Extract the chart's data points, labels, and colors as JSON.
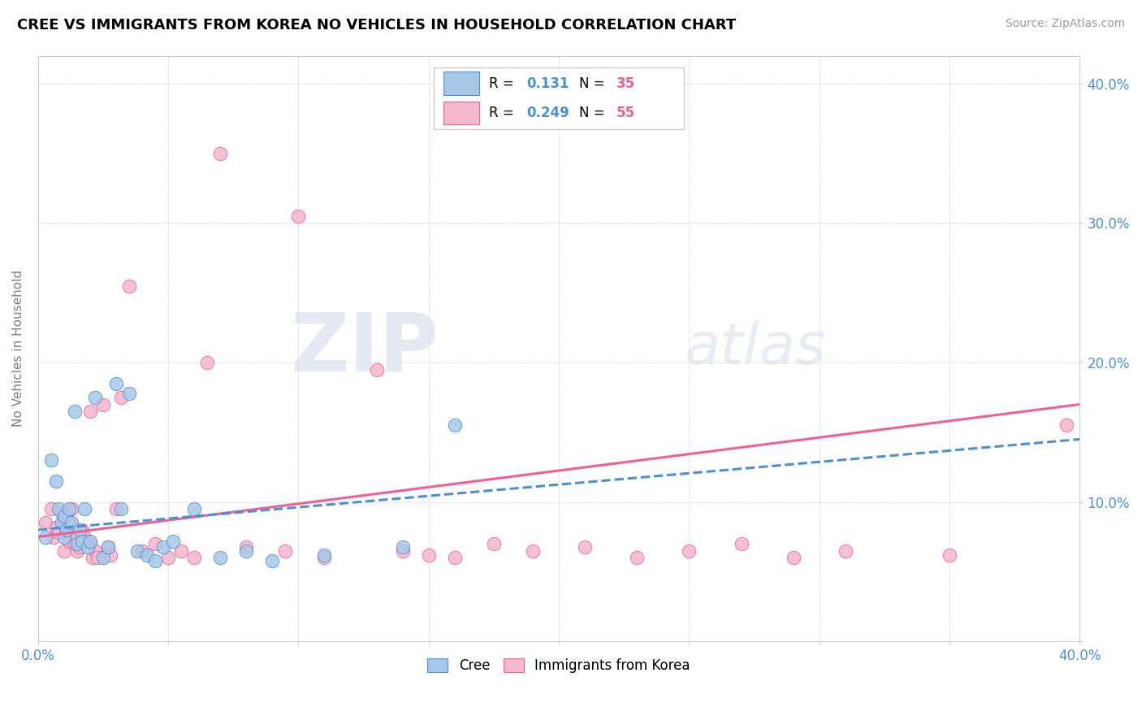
{
  "title": "CREE VS IMMIGRANTS FROM KOREA NO VEHICLES IN HOUSEHOLD CORRELATION CHART",
  "source": "Source: ZipAtlas.com",
  "ylabel": "No Vehicles in Household",
  "xlim": [
    0.0,
    0.4
  ],
  "ylim": [
    0.0,
    0.42
  ],
  "yticks": [
    0.0,
    0.1,
    0.2,
    0.3,
    0.4
  ],
  "ytick_labels": [
    "",
    "10.0%",
    "20.0%",
    "30.0%",
    "40.0%"
  ],
  "xtick_vals": [
    0.0,
    0.05,
    0.1,
    0.15,
    0.2,
    0.25,
    0.3,
    0.35,
    0.4
  ],
  "xtick_labels": [
    "0.0%",
    "",
    "",
    "",
    "",
    "",
    "",
    "",
    "40.0%"
  ],
  "cree_color": "#a8c8e8",
  "korea_color": "#f5b8cc",
  "trendline_cree_color": "#4a90d9",
  "trendline_korea_color": "#f06090",
  "watermark_zip": "ZIP",
  "watermark_atlas": "atlas",
  "cree_x": [
    0.003,
    0.005,
    0.007,
    0.008,
    0.009,
    0.01,
    0.01,
    0.011,
    0.012,
    0.013,
    0.014,
    0.015,
    0.016,
    0.017,
    0.018,
    0.019,
    0.02,
    0.022,
    0.025,
    0.027,
    0.03,
    0.032,
    0.035,
    0.038,
    0.042,
    0.045,
    0.048,
    0.052,
    0.06,
    0.07,
    0.08,
    0.09,
    0.11,
    0.14,
    0.16
  ],
  "cree_y": [
    0.075,
    0.13,
    0.115,
    0.095,
    0.085,
    0.09,
    0.075,
    0.08,
    0.095,
    0.085,
    0.165,
    0.07,
    0.08,
    0.072,
    0.095,
    0.068,
    0.072,
    0.175,
    0.06,
    0.068,
    0.185,
    0.095,
    0.178,
    0.065,
    0.062,
    0.058,
    0.068,
    0.072,
    0.095,
    0.06,
    0.065,
    0.058,
    0.062,
    0.068,
    0.155
  ],
  "korea_x": [
    0.003,
    0.005,
    0.006,
    0.007,
    0.008,
    0.009,
    0.01,
    0.01,
    0.011,
    0.012,
    0.012,
    0.013,
    0.014,
    0.015,
    0.015,
    0.016,
    0.017,
    0.018,
    0.019,
    0.02,
    0.02,
    0.021,
    0.022,
    0.023,
    0.025,
    0.027,
    0.028,
    0.03,
    0.032,
    0.035,
    0.04,
    0.045,
    0.05,
    0.055,
    0.06,
    0.065,
    0.07,
    0.08,
    0.095,
    0.1,
    0.11,
    0.13,
    0.14,
    0.15,
    0.16,
    0.175,
    0.19,
    0.21,
    0.23,
    0.25,
    0.27,
    0.29,
    0.31,
    0.35,
    0.395
  ],
  "korea_y": [
    0.085,
    0.095,
    0.075,
    0.082,
    0.078,
    0.092,
    0.088,
    0.065,
    0.08,
    0.085,
    0.072,
    0.095,
    0.07,
    0.065,
    0.075,
    0.068,
    0.08,
    0.075,
    0.072,
    0.07,
    0.165,
    0.06,
    0.065,
    0.06,
    0.17,
    0.068,
    0.062,
    0.095,
    0.175,
    0.255,
    0.065,
    0.07,
    0.06,
    0.065,
    0.06,
    0.2,
    0.35,
    0.068,
    0.065,
    0.305,
    0.06,
    0.195,
    0.065,
    0.062,
    0.06,
    0.07,
    0.065,
    0.068,
    0.06,
    0.065,
    0.07,
    0.06,
    0.065,
    0.062,
    0.155
  ],
  "trend_cree_x0": 0.0,
  "trend_cree_y0": 0.08,
  "trend_cree_x1": 0.4,
  "trend_cree_y1": 0.145,
  "trend_korea_x0": 0.0,
  "trend_korea_y0": 0.075,
  "trend_korea_x1": 0.4,
  "trend_korea_y1": 0.17
}
